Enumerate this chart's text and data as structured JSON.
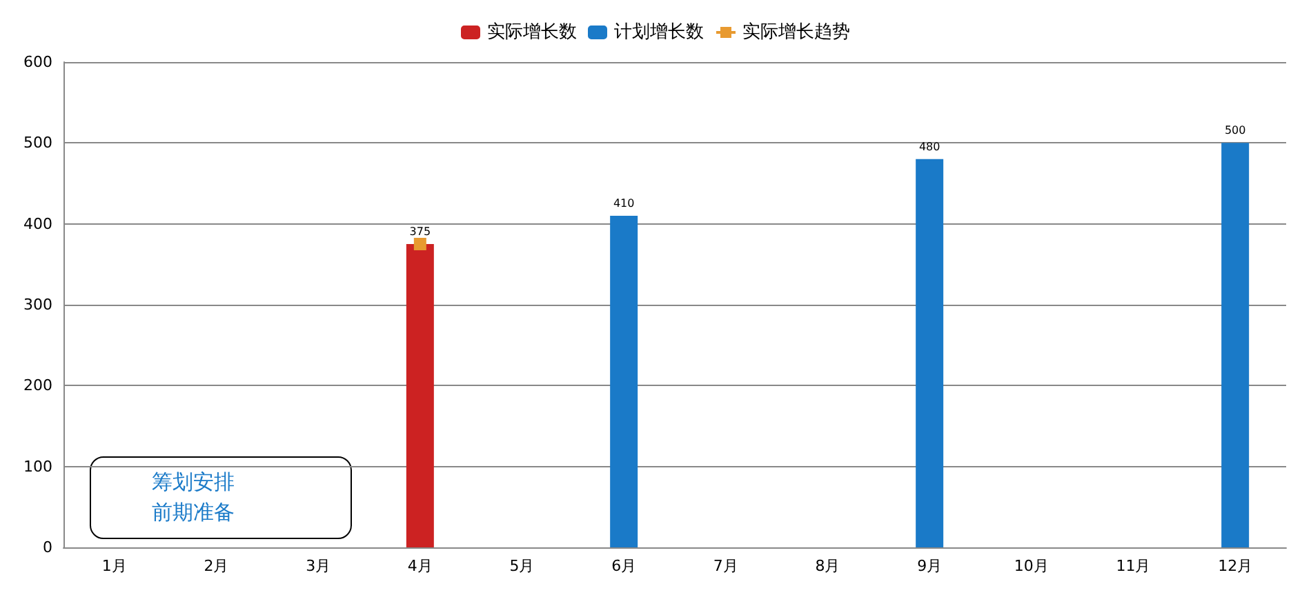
{
  "chart_data": {
    "type": "bar",
    "categories": [
      "1月",
      "2月",
      "3月",
      "4月",
      "5月",
      "6月",
      "7月",
      "8月",
      "9月",
      "10月",
      "11月",
      "12月"
    ],
    "series": [
      {
        "name": "实际增长数",
        "color": "#cc2222",
        "values": [
          null,
          null,
          null,
          375,
          null,
          null,
          null,
          null,
          null,
          null,
          null,
          null
        ],
        "value_labels": [
          null,
          null,
          null,
          "375",
          null,
          null,
          null,
          null,
          null,
          null,
          null,
          null
        ]
      },
      {
        "name": "计划增长数",
        "color": "#1a7ac8",
        "values": [
          null,
          null,
          null,
          null,
          null,
          410,
          null,
          null,
          480,
          null,
          null,
          500
        ],
        "value_labels": [
          null,
          null,
          null,
          null,
          null,
          "410",
          null,
          null,
          "480",
          null,
          null,
          "500"
        ]
      },
      {
        "name": "实际增长趋势",
        "type": "line",
        "color": "#e89a30",
        "marker": "square",
        "values": [
          null,
          null,
          null,
          375,
          null,
          null,
          null,
          null,
          null,
          null,
          null,
          null
        ]
      }
    ],
    "ylim": [
      0,
      600
    ],
    "yticks": [
      0,
      100,
      200,
      300,
      400,
      500,
      600
    ],
    "grid": "y",
    "legend": "top",
    "annotations": [
      "筹划安排",
      "前期准备"
    ]
  }
}
